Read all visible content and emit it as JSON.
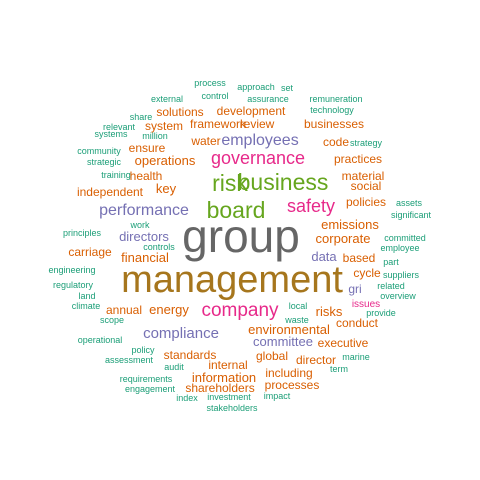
{
  "palette": {
    "teal": "#1b9e77",
    "orange": "#d95f02",
    "purple": "#7570b3",
    "magenta": "#e7298a",
    "green": "#66a61e",
    "gold": "#a6761d",
    "gray": "#666666"
  },
  "words": [
    {
      "text": "management",
      "color": "gold"
    },
    {
      "text": "group",
      "color": "gray"
    },
    {
      "text": "business",
      "color": "green"
    },
    {
      "text": "board",
      "color": "green"
    },
    {
      "text": "risk",
      "color": "green"
    },
    {
      "text": "governance",
      "color": "magenta"
    },
    {
      "text": "company",
      "color": "magenta"
    },
    {
      "text": "safety",
      "color": "magenta"
    },
    {
      "text": "employees",
      "color": "purple"
    },
    {
      "text": "performance",
      "color": "purple"
    },
    {
      "text": "compliance",
      "color": "purple"
    },
    {
      "text": "corporate",
      "color": "orange"
    },
    {
      "text": "key",
      "color": "orange"
    },
    {
      "text": "operations",
      "color": "orange"
    },
    {
      "text": "directors",
      "color": "purple"
    },
    {
      "text": "financial",
      "color": "orange"
    },
    {
      "text": "emissions",
      "color": "orange"
    },
    {
      "text": "data",
      "color": "purple"
    },
    {
      "text": "committee",
      "color": "purple"
    },
    {
      "text": "environmental",
      "color": "orange"
    },
    {
      "text": "information",
      "color": "orange"
    },
    {
      "text": "risks",
      "color": "orange"
    },
    {
      "text": "energy",
      "color": "orange"
    },
    {
      "text": "water",
      "color": "orange"
    },
    {
      "text": "review",
      "color": "orange"
    },
    {
      "text": "framework",
      "color": "orange"
    },
    {
      "text": "standards",
      "color": "orange"
    },
    {
      "text": "internal",
      "color": "orange"
    },
    {
      "text": "global",
      "color": "orange"
    },
    {
      "text": "including",
      "color": "orange"
    },
    {
      "text": "health",
      "color": "orange"
    },
    {
      "text": "executive",
      "color": "orange"
    },
    {
      "text": "shareholders",
      "color": "orange"
    },
    {
      "text": "processes",
      "color": "orange"
    },
    {
      "text": "development",
      "color": "orange"
    },
    {
      "text": "solutions",
      "color": "orange"
    },
    {
      "text": "businesses",
      "color": "orange"
    },
    {
      "text": "practices",
      "color": "orange"
    },
    {
      "text": "conduct",
      "color": "orange"
    },
    {
      "text": "policies",
      "color": "orange"
    },
    {
      "text": "independent",
      "color": "orange"
    },
    {
      "text": "system",
      "color": "orange"
    },
    {
      "text": "ensure",
      "color": "orange"
    },
    {
      "text": "cycle",
      "color": "orange"
    },
    {
      "text": "annual",
      "color": "orange"
    },
    {
      "text": "director",
      "color": "orange"
    },
    {
      "text": "based",
      "color": "orange"
    },
    {
      "text": "gri",
      "color": "purple"
    },
    {
      "text": "material",
      "color": "orange"
    },
    {
      "text": "social",
      "color": "orange"
    },
    {
      "text": "code",
      "color": "orange"
    },
    {
      "text": "carriage",
      "color": "orange"
    },
    {
      "text": "issues",
      "color": "magenta"
    },
    {
      "text": "process",
      "color": "teal"
    },
    {
      "text": "approach",
      "color": "teal"
    },
    {
      "text": "set",
      "color": "teal"
    },
    {
      "text": "control",
      "color": "teal"
    },
    {
      "text": "assurance",
      "color": "teal"
    },
    {
      "text": "remuneration",
      "color": "teal"
    },
    {
      "text": "external",
      "color": "teal"
    },
    {
      "text": "technology",
      "color": "teal"
    },
    {
      "text": "share",
      "color": "teal"
    },
    {
      "text": "relevant",
      "color": "teal"
    },
    {
      "text": "million",
      "color": "teal"
    },
    {
      "text": "systems",
      "color": "teal"
    },
    {
      "text": "community",
      "color": "teal"
    },
    {
      "text": "strategy",
      "color": "teal"
    },
    {
      "text": "strategic",
      "color": "teal"
    },
    {
      "text": "training",
      "color": "teal"
    },
    {
      "text": "assets",
      "color": "teal"
    },
    {
      "text": "significant",
      "color": "teal"
    },
    {
      "text": "work",
      "color": "teal"
    },
    {
      "text": "principles",
      "color": "teal"
    },
    {
      "text": "controls",
      "color": "teal"
    },
    {
      "text": "committed",
      "color": "teal"
    },
    {
      "text": "employee",
      "color": "teal"
    },
    {
      "text": "engineering",
      "color": "teal"
    },
    {
      "text": "part",
      "color": "teal"
    },
    {
      "text": "suppliers",
      "color": "teal"
    },
    {
      "text": "related",
      "color": "teal"
    },
    {
      "text": "regulatory",
      "color": "teal"
    },
    {
      "text": "land",
      "color": "teal"
    },
    {
      "text": "climate",
      "color": "teal"
    },
    {
      "text": "scope",
      "color": "teal"
    },
    {
      "text": "overview",
      "color": "teal"
    },
    {
      "text": "local",
      "color": "teal"
    },
    {
      "text": "provide",
      "color": "teal"
    },
    {
      "text": "waste",
      "color": "teal"
    },
    {
      "text": "operational",
      "color": "teal"
    },
    {
      "text": "policy",
      "color": "teal"
    },
    {
      "text": "assessment",
      "color": "teal"
    },
    {
      "text": "marine",
      "color": "teal"
    },
    {
      "text": "audit",
      "color": "teal"
    },
    {
      "text": "term",
      "color": "teal"
    },
    {
      "text": "requirements",
      "color": "teal"
    },
    {
      "text": "engagement",
      "color": "teal"
    },
    {
      "text": "impact",
      "color": "teal"
    },
    {
      "text": "index",
      "color": "teal"
    },
    {
      "text": "investment",
      "color": "teal"
    },
    {
      "text": "stakeholders",
      "color": "teal"
    }
  ]
}
